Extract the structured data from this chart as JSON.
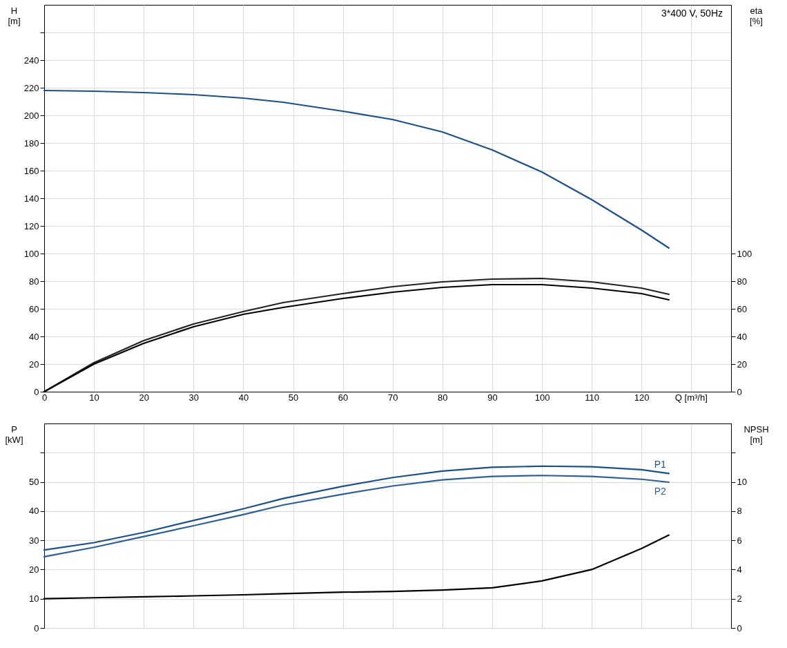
{
  "chart_data": [
    {
      "type": "line",
      "ylabel": "H [m]",
      "y2label": "eta [%]",
      "xlabel": "Q [m³/h]",
      "annotations": [
        "3*400 V, 50Hz"
      ],
      "x": [
        0,
        10,
        20,
        30,
        40,
        48,
        60,
        70,
        80,
        90,
        100,
        110,
        120,
        125.5
      ],
      "xlim": [
        0,
        138
      ],
      "xticks": [
        0,
        10,
        20,
        30,
        40,
        50,
        60,
        70,
        80,
        90,
        100,
        110,
        120,
        {
          "value": 130,
          "label": null
        }
      ],
      "ylim": [
        0,
        280
      ],
      "yticks": [
        0,
        20,
        40,
        60,
        80,
        100,
        120,
        140,
        160,
        180,
        200,
        220,
        240,
        {
          "value": 260,
          "label": null
        }
      ],
      "y2lim": [
        0,
        280
      ],
      "y2ticks": [
        0,
        20,
        40,
        60,
        80,
        100
      ],
      "grid": true,
      "legend": false,
      "marker": "none",
      "line_style": "solid",
      "series": [
        {
          "color": "#1a4f8a",
          "values": [
            218,
            217.5,
            216.5,
            215,
            212.5,
            209.5,
            203,
            197,
            188,
            175,
            159,
            139,
            117,
            104
          ]
        },
        {
          "color": "#222222",
          "axis": "y2",
          "values": [
            0,
            21,
            37,
            49,
            58,
            64.5,
            71,
            76,
            79.5,
            81.5,
            82,
            79.5,
            75,
            70.5
          ]
        },
        {
          "color": "#000000",
          "axis": "y2",
          "values": [
            0,
            20,
            35,
            47,
            56,
            61,
            67.5,
            72,
            75.5,
            77.5,
            77.5,
            75,
            71,
            66.5
          ]
        }
      ]
    },
    {
      "type": "line",
      "ylabel": "P [kW]",
      "y2label": "NPSH [m]",
      "x": [
        0,
        10,
        20,
        30,
        40,
        48,
        60,
        70,
        80,
        90,
        100,
        110,
        120,
        125.5
      ],
      "xlim": [
        0,
        138
      ],
      "xticks": [
        0,
        10,
        20,
        30,
        40,
        50,
        60,
        70,
        80,
        90,
        100,
        110,
        120,
        130
      ],
      "ylim": [
        0,
        70
      ],
      "yticks": [
        0,
        10,
        20,
        30,
        40,
        50,
        {
          "value": 60,
          "label": null
        }
      ],
      "y2lim": [
        0,
        14
      ],
      "y2ticks": [
        0,
        2,
        4,
        6,
        8,
        10,
        {
          "value": 12,
          "label": null
        }
      ],
      "tick_labels": "y",
      "grid": true,
      "legend": false,
      "marker": "none",
      "line_style": "solid",
      "series": [
        {
          "name": "P1",
          "color": "#1a4f8a",
          "values": [
            26.7,
            29.2,
            32.7,
            36.8,
            40.8,
            44.3,
            48.5,
            51.5,
            53.7,
            55,
            55.4,
            55.2,
            54.2,
            52.9
          ]
        },
        {
          "name": "P2",
          "color": "#2c5f9a",
          "values": [
            24.4,
            27.6,
            31.3,
            35,
            38.8,
            42.1,
            45.8,
            48.6,
            50.7,
            51.9,
            52.2,
            51.9,
            50.9,
            49.9
          ]
        },
        {
          "color": "#000000",
          "axis": "y2",
          "values": [
            2.0,
            2.07,
            2.13,
            2.2,
            2.27,
            2.35,
            2.45,
            2.5,
            2.6,
            2.75,
            3.22,
            4.0,
            5.44,
            6.36
          ]
        }
      ]
    }
  ]
}
